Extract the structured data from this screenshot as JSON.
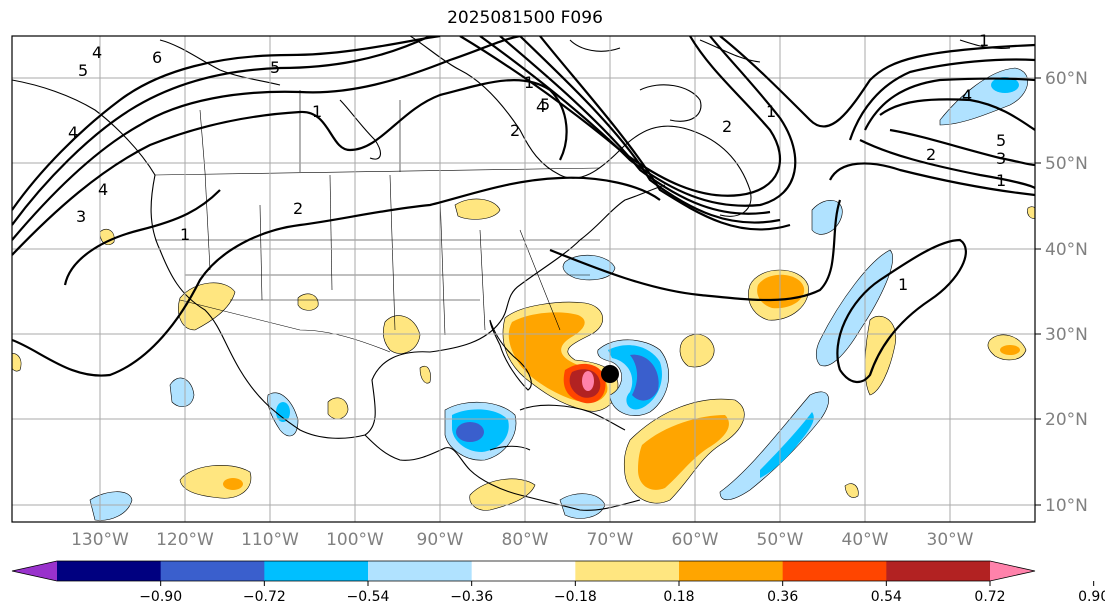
{
  "title": "2025081500 F096",
  "lat_labels": [
    "60°N",
    "50°N",
    "40°N",
    "30°N",
    "20°N",
    "10°N"
  ],
  "lon_labels": [
    "130°W",
    "120°W",
    "110°W",
    "100°W",
    "90°W",
    "80°W",
    "70°W",
    "60°W",
    "50°W",
    "40°W",
    "30°W"
  ],
  "contour_labels": [
    "4",
    "5",
    "6",
    "5",
    "1",
    "4",
    "2",
    "1",
    "2",
    "1",
    "5",
    "4",
    "2",
    "3",
    "4",
    "1",
    "1",
    "4",
    "5",
    "2",
    "3",
    "1",
    "1"
  ],
  "colorbar": {
    "colors": [
      "#9932cc",
      "#000080",
      "#3a5fcd",
      "#00bfff",
      "#b0e2ff",
      "#ffffff",
      "#ffe680",
      "#ffa500",
      "#ff4500",
      "#b22222",
      "#ff82ab"
    ],
    "labels": [
      "−0.90",
      "−0.72",
      "−0.54",
      "−0.36",
      "−0.18",
      "0.18",
      "0.36",
      "0.54",
      "0.72",
      "0.90"
    ]
  },
  "storm_marker": {
    "lat": 25.5,
    "lon": "69.5°W"
  }
}
